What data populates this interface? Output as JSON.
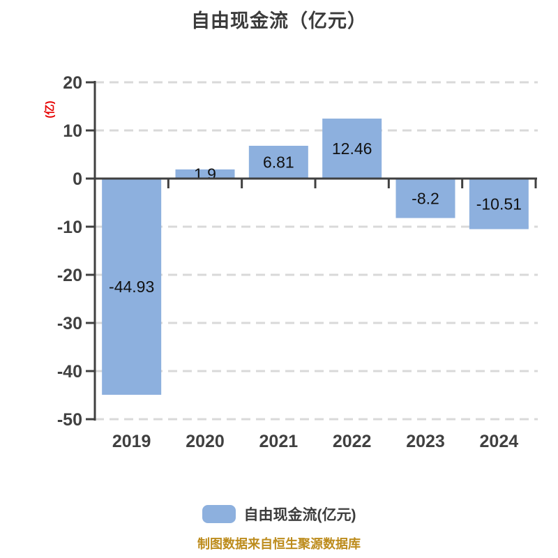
{
  "header": {
    "title": "自由现金流（亿元）"
  },
  "chart_data": {
    "type": "bar",
    "title": "自由现金流（亿元）",
    "categories": [
      "2019",
      "2020",
      "2021",
      "2022",
      "2023",
      "2024"
    ],
    "series": [
      {
        "name": "自由现金流(亿元)",
        "values": [
          -44.93,
          1.9,
          6.81,
          12.46,
          -8.2,
          -10.51
        ]
      }
    ],
    "value_labels": [
      "-44.93",
      "1.9",
      "6.81",
      "12.46",
      "-8.2",
      "-10.51"
    ],
    "y_unit": "(亿)",
    "ylim": [
      -50,
      20
    ],
    "ytick_step": 10,
    "yticks": [
      20,
      10,
      0,
      -10,
      -20,
      -30,
      -40,
      -50
    ],
    "grid": "horizontal-dashed",
    "legend_position": "bottom",
    "colors": {
      "bar_fill": "#8db0de",
      "grid_line": "#d9d9d9",
      "axis_line": "#404040",
      "tick_label": "#404040",
      "value_label": "#111111",
      "y_unit_label": "#e60000"
    }
  },
  "legend": {
    "label": "自由现金流(亿元)"
  },
  "footer": {
    "caption": "制图数据来自恒生聚源数据库",
    "color": "#bd8c1d"
  }
}
